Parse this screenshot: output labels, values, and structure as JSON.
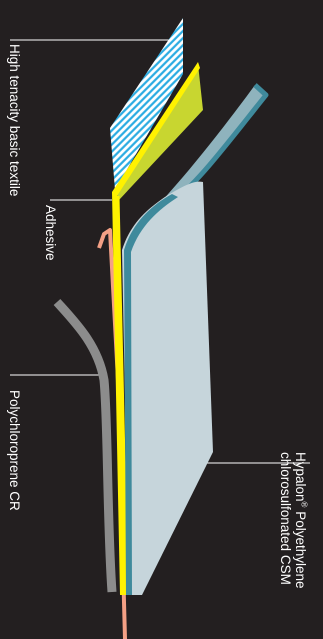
{
  "labels": {
    "textile": "High tenacity basic textile",
    "adhesive": "Adhesive",
    "polychloroprene": "Polychloroprene CR",
    "hypalon_line1_brand": "Hypalon",
    "hypalon_line1_mark": "®",
    "hypalon_line1_rest": " Polyethylene",
    "hypalon_line2": "chlorosulfonated CSM"
  },
  "colors": {
    "background": "#231f20",
    "textile_hatch": "#29abe2",
    "adhesive_band": "#c8d630",
    "adhesive_edge": "#fff200",
    "csm_face": "#c6d5db",
    "csm_back": "#8fb3bd",
    "csm_edge": "#3f8a9c",
    "cr_strip": "#8c8c8c",
    "cr_edge": "#f4a085",
    "leader_line": "#ffffff"
  }
}
